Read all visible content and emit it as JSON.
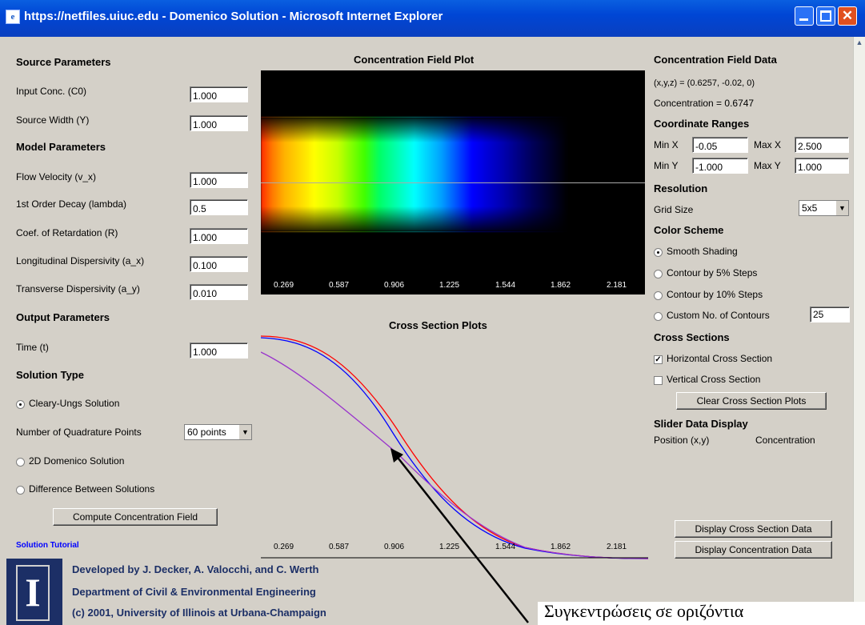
{
  "window": {
    "title": "https://netfiles.uiuc.edu - Domenico Solution - Microsoft Internet Explorer",
    "icon": "ie-page-icon",
    "colors": {
      "titlebar": "#0046d5",
      "content_bg": "#d4d0c8",
      "close": "#e1501f"
    }
  },
  "source_params": {
    "heading": "Source Parameters",
    "input_conc_label": "Input Conc. (C0)",
    "input_conc_value": "1.000",
    "source_width_label": "Source Width (Y)",
    "source_width_value": "1.000"
  },
  "model_params": {
    "heading": "Model Parameters",
    "flow_label": "Flow Velocity (v_x)",
    "flow_value": "1.000",
    "decay_label": "1st Order Decay (lambda)",
    "decay_value": "0.5",
    "retard_label": "Coef. of Retardation (R)",
    "retard_value": "1.000",
    "long_disp_label": "Longitudinal Dispersivity (a_x)",
    "long_disp_value": "0.100",
    "trans_disp_label": "Transverse Dispersivity (a_y)",
    "trans_disp_value": "0.010"
  },
  "output_params": {
    "heading": "Output Parameters",
    "time_label": "Time (t)",
    "time_value": "1.000"
  },
  "solution": {
    "heading": "Solution Type",
    "cleary_label": "Cleary-Ungs Solution",
    "quad_label": "Number of Quadrature Points",
    "quad_value": "60 points",
    "domenico_label": "2D Domenico Solution",
    "diff_label": "Difference Between Solutions",
    "compute_button": "Compute Concentration Field",
    "tutorial_link": "Solution Tutorial"
  },
  "credits": {
    "line1": "Developed by J. Decker, A. Valocchi, and C. Werth",
    "line2": "Department of Civil & Environmental Engineering",
    "line3": "(c) 2001, University of Illinois at Urbana-Champaign",
    "logo_letter": "I"
  },
  "field_plot": {
    "title": "Concentration Field Plot",
    "ticks": [
      "0.269",
      "0.587",
      "0.906",
      "1.225",
      "1.544",
      "1.862",
      "2.181"
    ]
  },
  "cross_plot": {
    "title": "Cross Section Plots",
    "ticks": [
      "0.269",
      "0.587",
      "0.906",
      "1.225",
      "1.544",
      "1.862",
      "2.181"
    ],
    "series_colors": [
      "#ff0000",
      "#0000ff",
      "#9933cc"
    ]
  },
  "field_data": {
    "heading": "Concentration Field Data",
    "coords": "(x,y,z) = (0.6257, -0.02, 0)",
    "concentration": "Concentration = 0.6747"
  },
  "ranges": {
    "heading": "Coordinate Ranges",
    "minx_label": "Min X",
    "minx_value": "-0.05",
    "maxx_label": "Max X",
    "maxx_value": "2.500",
    "miny_label": "Min Y",
    "miny_value": "-1.000",
    "maxy_label": "Max Y",
    "maxy_value": "1.000"
  },
  "resolution": {
    "heading": "Resolution",
    "grid_label": "Grid Size",
    "grid_value": "5x5"
  },
  "color_scheme": {
    "heading": "Color Scheme",
    "smooth": "Smooth Shading",
    "contour5": "Contour by 5% Steps",
    "contour10": "Contour by 10% Steps",
    "custom": "Custom No. of Contours",
    "custom_value": "25"
  },
  "cross_sections": {
    "heading": "Cross Sections",
    "horizontal": "Horizontal Cross Section",
    "vertical": "Vertical Cross Section",
    "clear_button": "Clear Cross Section Plots"
  },
  "slider": {
    "heading": "Slider Data Display",
    "position_label": "Position (x,y)",
    "conc_label": "Concentration"
  },
  "buttons": {
    "display_cross": "Display Cross Section Data",
    "display_conc": "Display Concentration Data"
  },
  "annotation": {
    "text": "Συγκεντρώσεις σε οριζόντια"
  }
}
